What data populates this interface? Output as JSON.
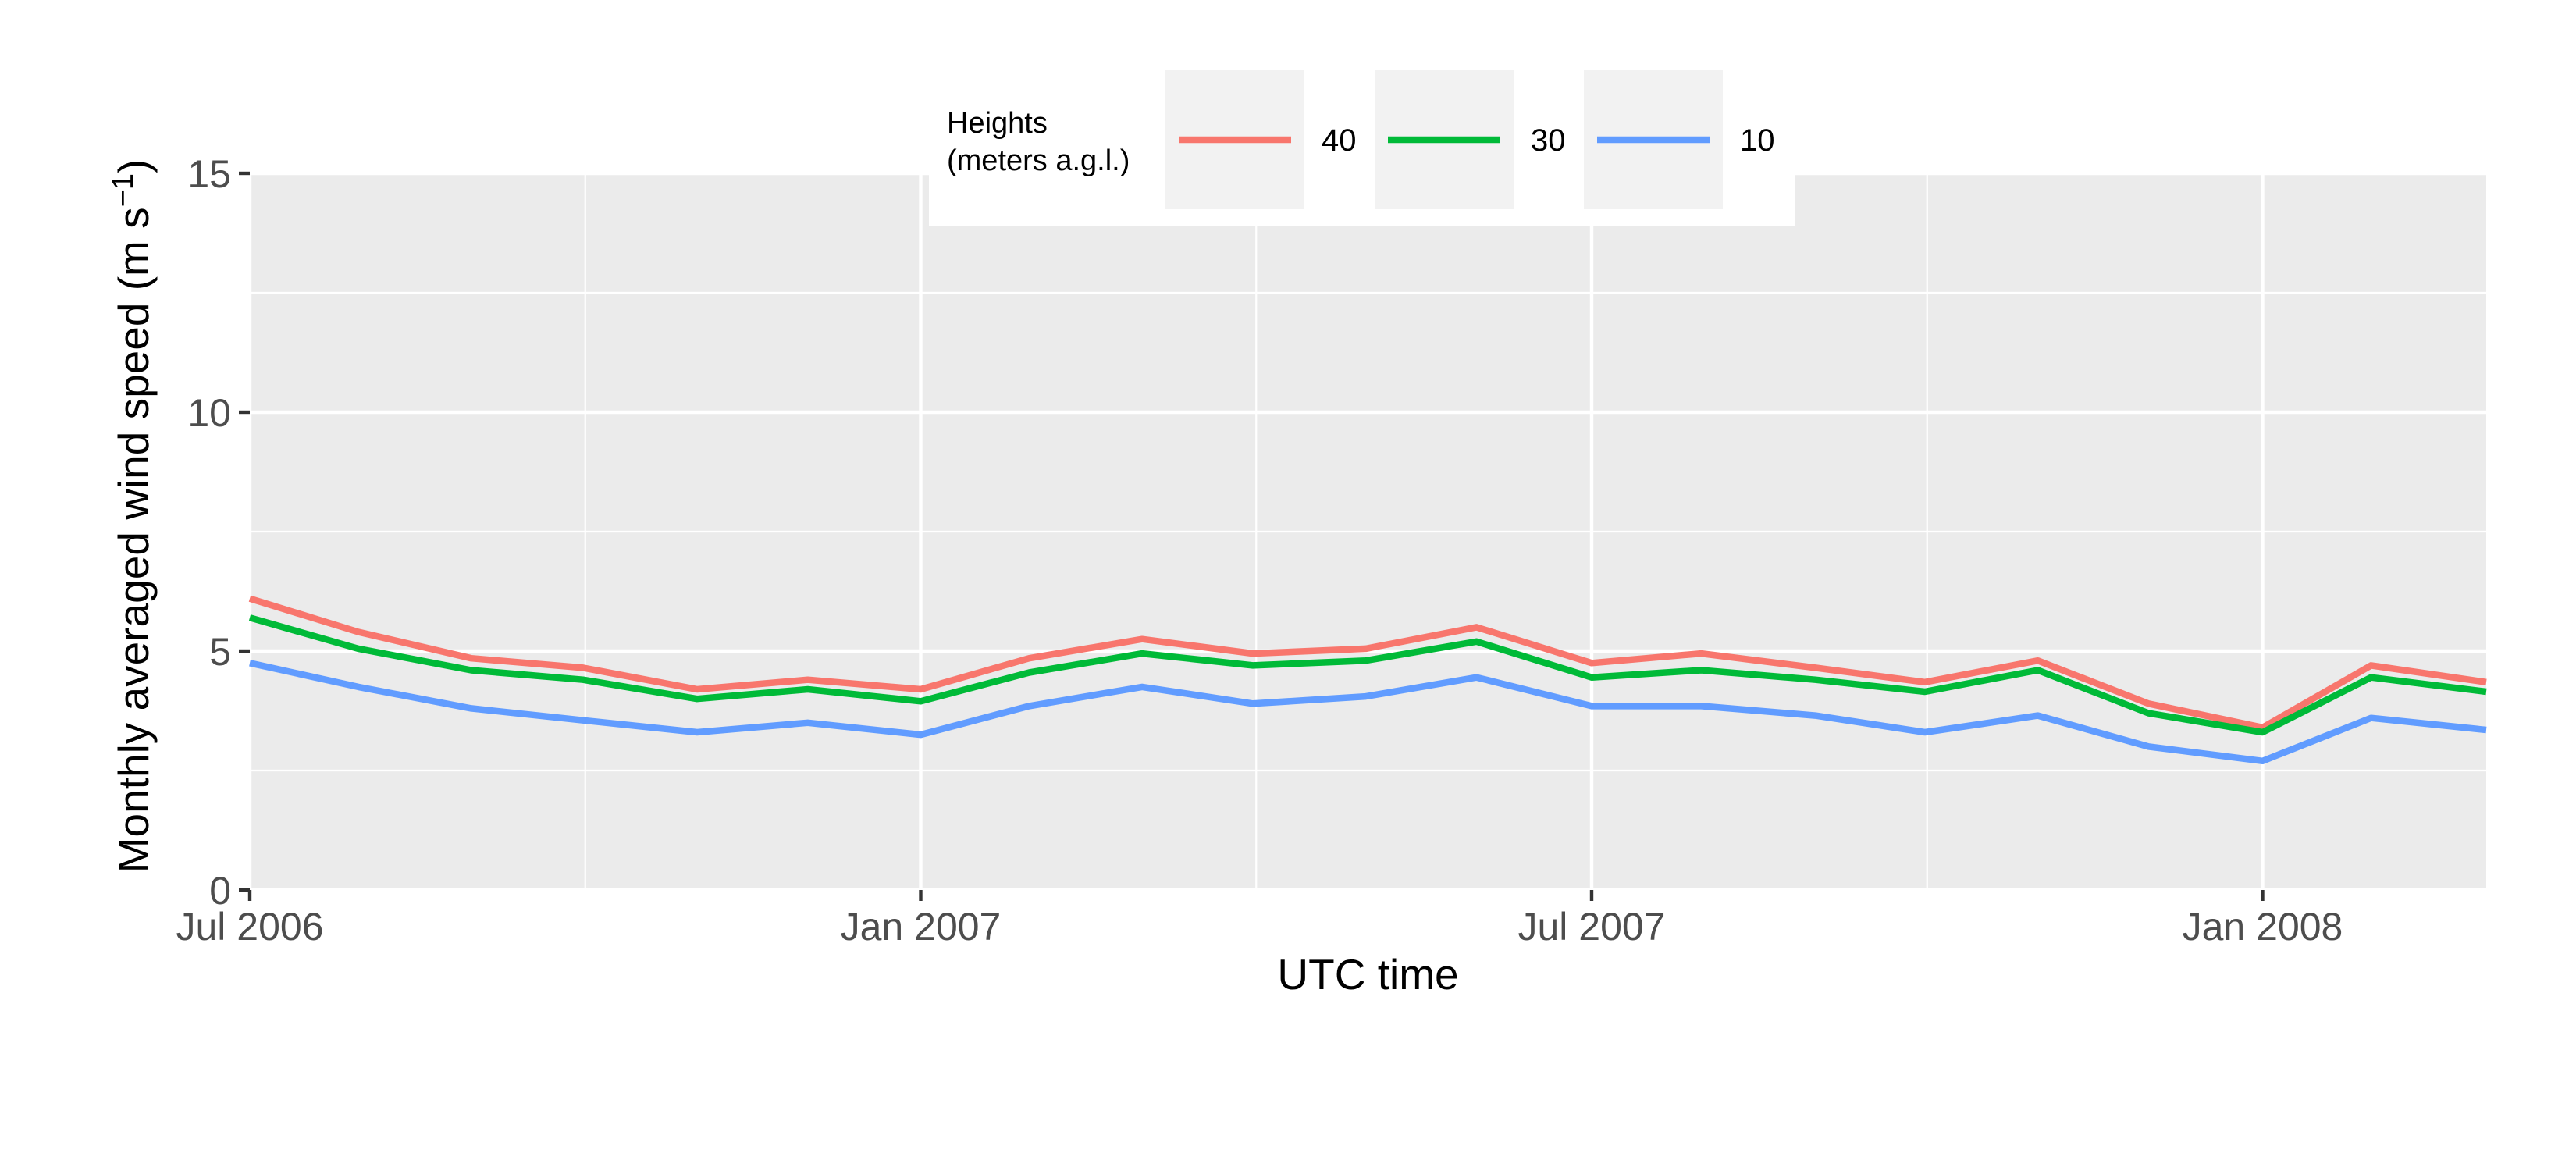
{
  "chart_data": {
    "type": "line",
    "xlabel": "UTC time",
    "ylabel": "Monthly averaged wind speed (m s",
    "ylabel_superscript": "−1",
    "ylabel_close": ")",
    "ylim": [
      0,
      15
    ],
    "yticks": [
      0,
      5,
      10,
      15
    ],
    "ytick_labels": [
      "0",
      "5",
      "10",
      "15"
    ],
    "xlim_month_index": [
      0,
      20
    ],
    "xticks": [
      {
        "label": "Jul 2006",
        "month_index": 0
      },
      {
        "label": "Jan 2007",
        "month_index": 6
      },
      {
        "label": "Jul 2007",
        "month_index": 12
      },
      {
        "label": "Jan 2008",
        "month_index": 18
      }
    ],
    "x_minor_month_index": [
      3,
      9,
      15
    ],
    "x_months": [
      "2006-07",
      "2006-08",
      "2006-09",
      "2006-10",
      "2006-11",
      "2006-12",
      "2007-01",
      "2007-02",
      "2007-03",
      "2007-04",
      "2007-05",
      "2007-06",
      "2007-07",
      "2007-08",
      "2007-09",
      "2007-10",
      "2007-11",
      "2007-12",
      "2008-01",
      "2008-02",
      "2008-03"
    ],
    "x_month_index": [
      0,
      0.97,
      1.98,
      2.98,
      4.0,
      4.99,
      6.0,
      6.97,
      7.98,
      8.97,
      9.98,
      10.97,
      12.0,
      12.98,
      14.0,
      14.98,
      15.99,
      16.98,
      18.0,
      18.97,
      20.0
    ],
    "legend": {
      "title_line1": "Heights",
      "title_line2": "(meters a.g.l.)",
      "position": "top"
    },
    "series": [
      {
        "name": "40",
        "color": "#F8766D",
        "values": [
          6.1,
          5.4,
          4.85,
          4.65,
          4.2,
          4.4,
          4.2,
          4.85,
          5.25,
          4.95,
          5.05,
          5.5,
          4.75,
          4.95,
          4.65,
          4.35,
          4.8,
          3.9,
          3.4,
          4.7,
          4.35
        ]
      },
      {
        "name": "30",
        "color": "#00BA38",
        "values": [
          5.7,
          5.05,
          4.6,
          4.4,
          4.0,
          4.2,
          3.95,
          4.55,
          4.95,
          4.7,
          4.8,
          5.2,
          4.45,
          4.6,
          4.4,
          4.15,
          4.6,
          3.7,
          3.3,
          4.45,
          4.15
        ]
      },
      {
        "name": "10",
        "color": "#619CFF",
        "values": [
          4.75,
          4.25,
          3.8,
          3.55,
          3.3,
          3.5,
          3.25,
          3.85,
          4.25,
          3.9,
          4.05,
          4.45,
          3.85,
          3.85,
          3.65,
          3.3,
          3.65,
          3.0,
          2.7,
          3.6,
          3.35
        ]
      }
    ]
  }
}
